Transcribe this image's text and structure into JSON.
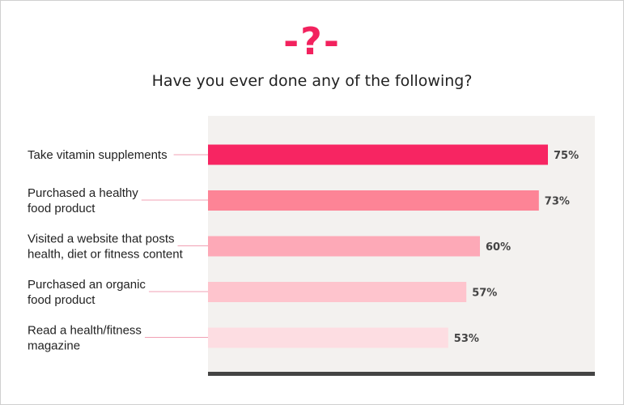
{
  "header": {
    "icon_text": "-?-",
    "title": "Have you ever done any of the following?"
  },
  "chart_data": {
    "type": "bar",
    "orientation": "horizontal",
    "title": "Have you ever done any of the following?",
    "categories": [
      "Take vitamin supplements",
      "Purchased a healthy\nfood product",
      "Visited a website that posts\nhealth, diet or fitness content",
      "Purchased an organic\nfood product",
      "Read a health/fitness\nmagazine"
    ],
    "values": [
      75,
      73,
      60,
      57,
      53
    ],
    "value_labels": [
      "75%",
      "73%",
      "60%",
      "57%",
      "53%"
    ],
    "unit": "%",
    "xlim": [
      0,
      100
    ],
    "grid": false,
    "legend": "none",
    "colors": [
      "#f72562",
      "#fd8496",
      "#fda9b7",
      "#fec4cd",
      "#fddde2"
    ],
    "plot_background": "#f3f1ef",
    "baseline_color": "#444444",
    "leader_line_color": "#f1a0b4"
  }
}
